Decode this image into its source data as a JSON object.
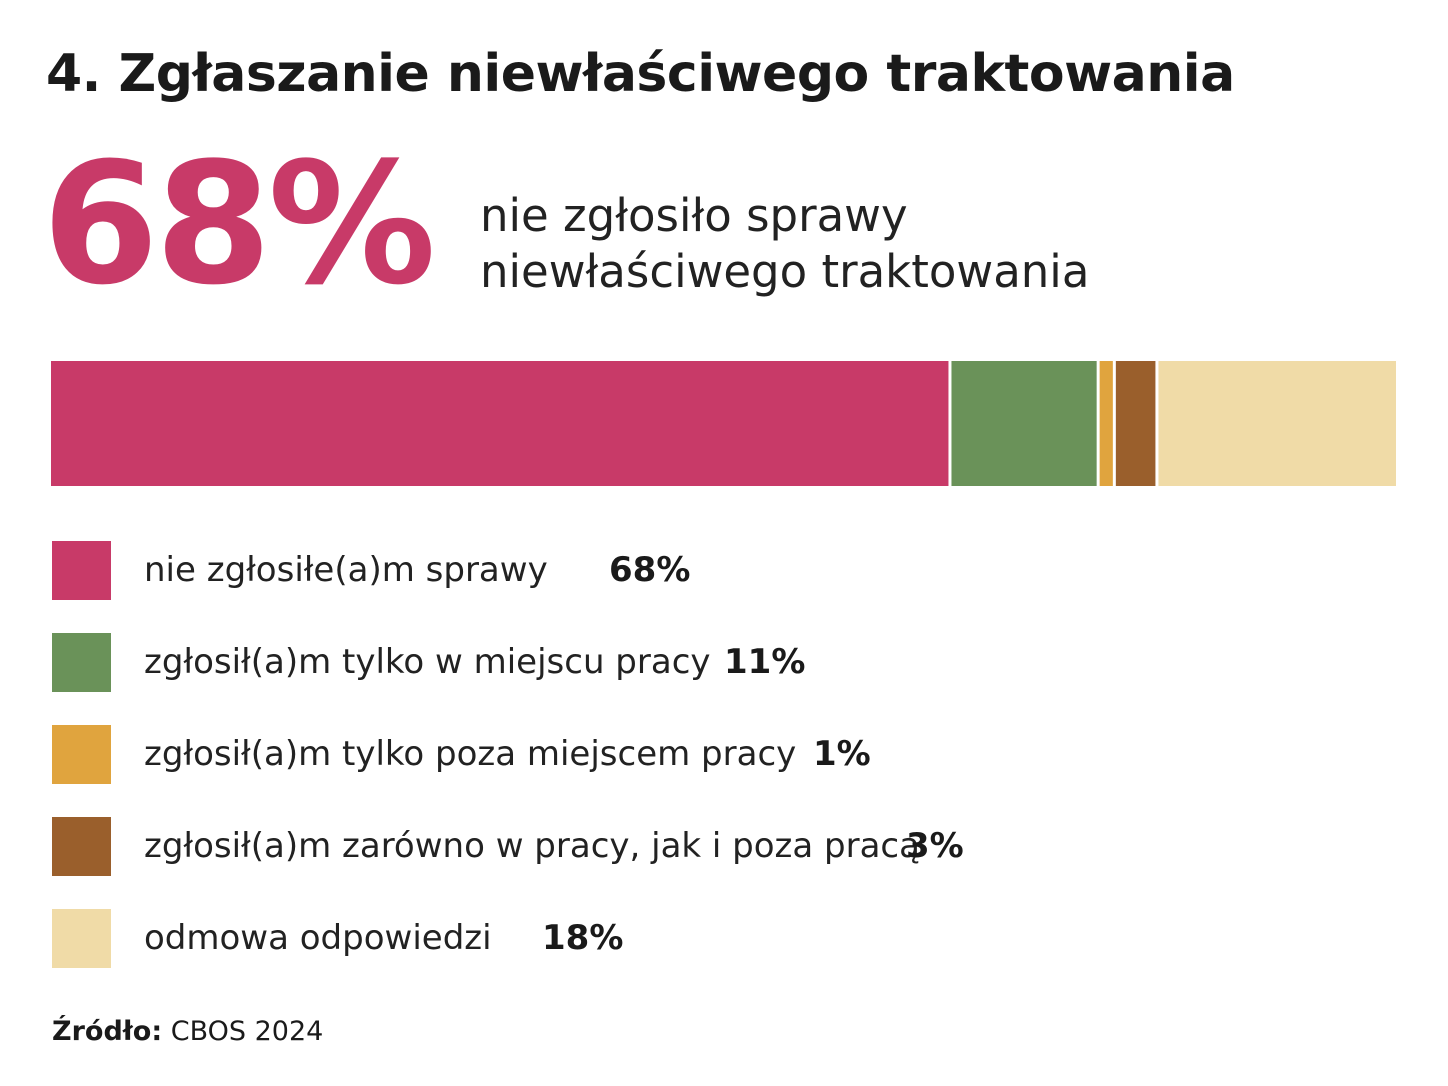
{
  "title": "4. Zgłaszanie niewłaściwego traktowania",
  "headline": {
    "value": "68%",
    "description_line1": "nie zgłosiło sprawy",
    "description_line2": "niewłaściwego traktowania"
  },
  "colors": {
    "accent": "#c83a68"
  },
  "chart_data": {
    "type": "bar",
    "stacked": true,
    "orientation": "horizontal",
    "unit": "%",
    "categories": [
      "nie zgłosiłe(a)m sprawy",
      "zgłosił(a)m tylko w miejscu pracy",
      "zgłosił(a)m tylko poza miejscem pracy",
      "zgłosił(a)m zarówno w pracy, jak i poza pracą",
      "odmowa odpowiedzi"
    ],
    "values": [
      68,
      11,
      1,
      3,
      18
    ],
    "value_labels": [
      "68%",
      "11%",
      "1%",
      "3%",
      "18%"
    ],
    "colors": [
      "#c83a68",
      "#6a9259",
      "#e0a43e",
      "#9a5f2c",
      "#f0dba7"
    ],
    "legend": "bottom"
  },
  "source": {
    "label": "Źródło:",
    "text": "CBOS 2024"
  }
}
